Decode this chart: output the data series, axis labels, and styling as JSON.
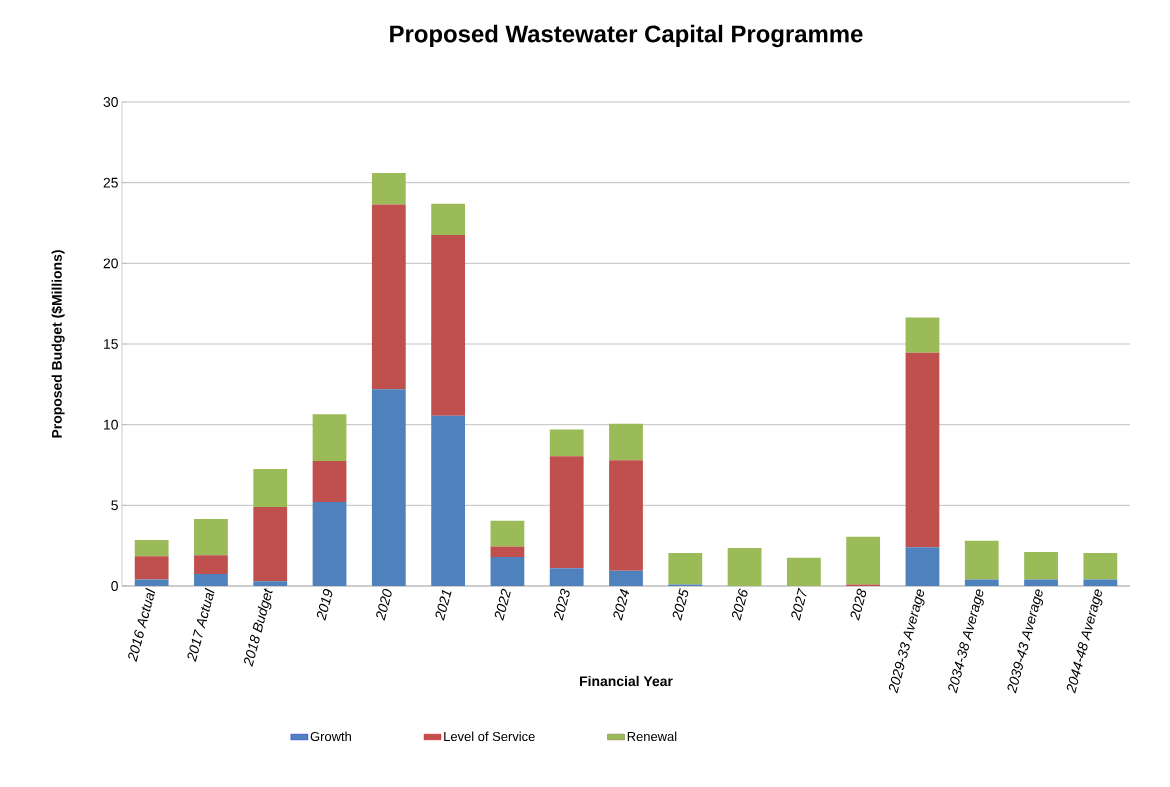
{
  "chart_data": {
    "type": "bar",
    "stacked": true,
    "title": "Proposed Wastewater Capital Programme",
    "xlabel": "Financial Year",
    "ylabel": "Proposed Budget ($Millions)",
    "categories": [
      "2016 Actual",
      "2017 Actual",
      "2018 Budget",
      "2019",
      "2020",
      "2021",
      "2022",
      "2023",
      "2024",
      "2025",
      "2026",
      "2027",
      "2028",
      "2029-33 Average",
      "2034-38 Average",
      "2039-43 Average",
      "2044-48 Average"
    ],
    "series": [
      {
        "name": "Growth",
        "color": "#4f81bd",
        "values": [
          0.4,
          0.75,
          0.3,
          5.2,
          12.2,
          10.55,
          1.8,
          1.1,
          0.95,
          0.1,
          0,
          0,
          0,
          2.4,
          0.4,
          0.4,
          0.4
        ]
      },
      {
        "name": "Level of Service",
        "color": "#c0504d",
        "values": [
          1.45,
          1.15,
          4.6,
          2.55,
          11.45,
          11.2,
          0.65,
          6.95,
          6.85,
          0,
          0,
          0,
          0.1,
          12.05,
          0,
          0,
          0
        ]
      },
      {
        "name": "Renewal",
        "color": "#9bbb59",
        "values": [
          1.0,
          2.25,
          2.35,
          2.9,
          1.95,
          1.95,
          1.6,
          1.65,
          2.25,
          1.95,
          2.35,
          1.75,
          2.95,
          2.2,
          2.4,
          1.7,
          1.65
        ]
      }
    ],
    "ylim": [
      0,
      30
    ],
    "yticks": [
      0,
      5,
      10,
      15,
      20,
      25,
      30
    ],
    "grid": "y",
    "legend": "bottom"
  }
}
